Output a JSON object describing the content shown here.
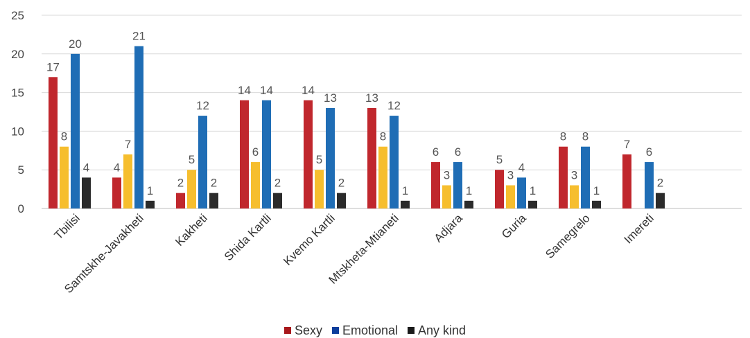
{
  "chart_data": {
    "type": "bar",
    "title": "",
    "xlabel": "",
    "ylabel": "",
    "ylim": [
      0,
      25
    ],
    "yticks": [
      0,
      5,
      10,
      15,
      20,
      25
    ],
    "grid": true,
    "legend_position": "bottom",
    "categories": [
      "Tbilisi",
      "Samtskhe-Javakheti",
      "Kakheti",
      "Shida Kartli",
      "Kvemo Kartli",
      "Mtskheta-Mtianeti",
      "Adjara",
      "Guria",
      "Samegrelo",
      "Imereti"
    ],
    "series": [
      {
        "name": "Sexy",
        "color": "#C0272D",
        "values": [
          17,
          4,
          2,
          14,
          14,
          13,
          6,
          5,
          8,
          7
        ],
        "labeled": [
          true,
          true,
          true,
          true,
          true,
          true,
          true,
          true,
          true,
          true
        ]
      },
      {
        "name": "",
        "color": "#F6BE2E",
        "values": [
          8,
          7,
          5,
          6,
          5,
          8,
          3,
          3,
          3,
          null
        ],
        "labeled": [
          true,
          true,
          true,
          true,
          true,
          true,
          true,
          true,
          true,
          false
        ]
      },
      {
        "name": "Emotional",
        "color": "#1F6DB5",
        "values": [
          20,
          21,
          12,
          14,
          13,
          12,
          6,
          4,
          8,
          6
        ],
        "labeled": [
          true,
          true,
          true,
          true,
          true,
          true,
          true,
          true,
          true,
          true
        ]
      },
      {
        "name": "Any kind",
        "color": "#2B2B2B",
        "values": [
          4,
          1,
          2,
          2,
          2,
          1,
          1,
          1,
          1,
          2
        ],
        "labeled": [
          true,
          true,
          true,
          true,
          true,
          true,
          true,
          true,
          true,
          true
        ]
      }
    ],
    "legend": [
      {
        "label": "Sexy",
        "color": "#A8181C"
      },
      {
        "label": "Emotional",
        "color": "#0D3E9C"
      },
      {
        "label": "Any kind",
        "color": "#1A1A1A"
      }
    ]
  }
}
